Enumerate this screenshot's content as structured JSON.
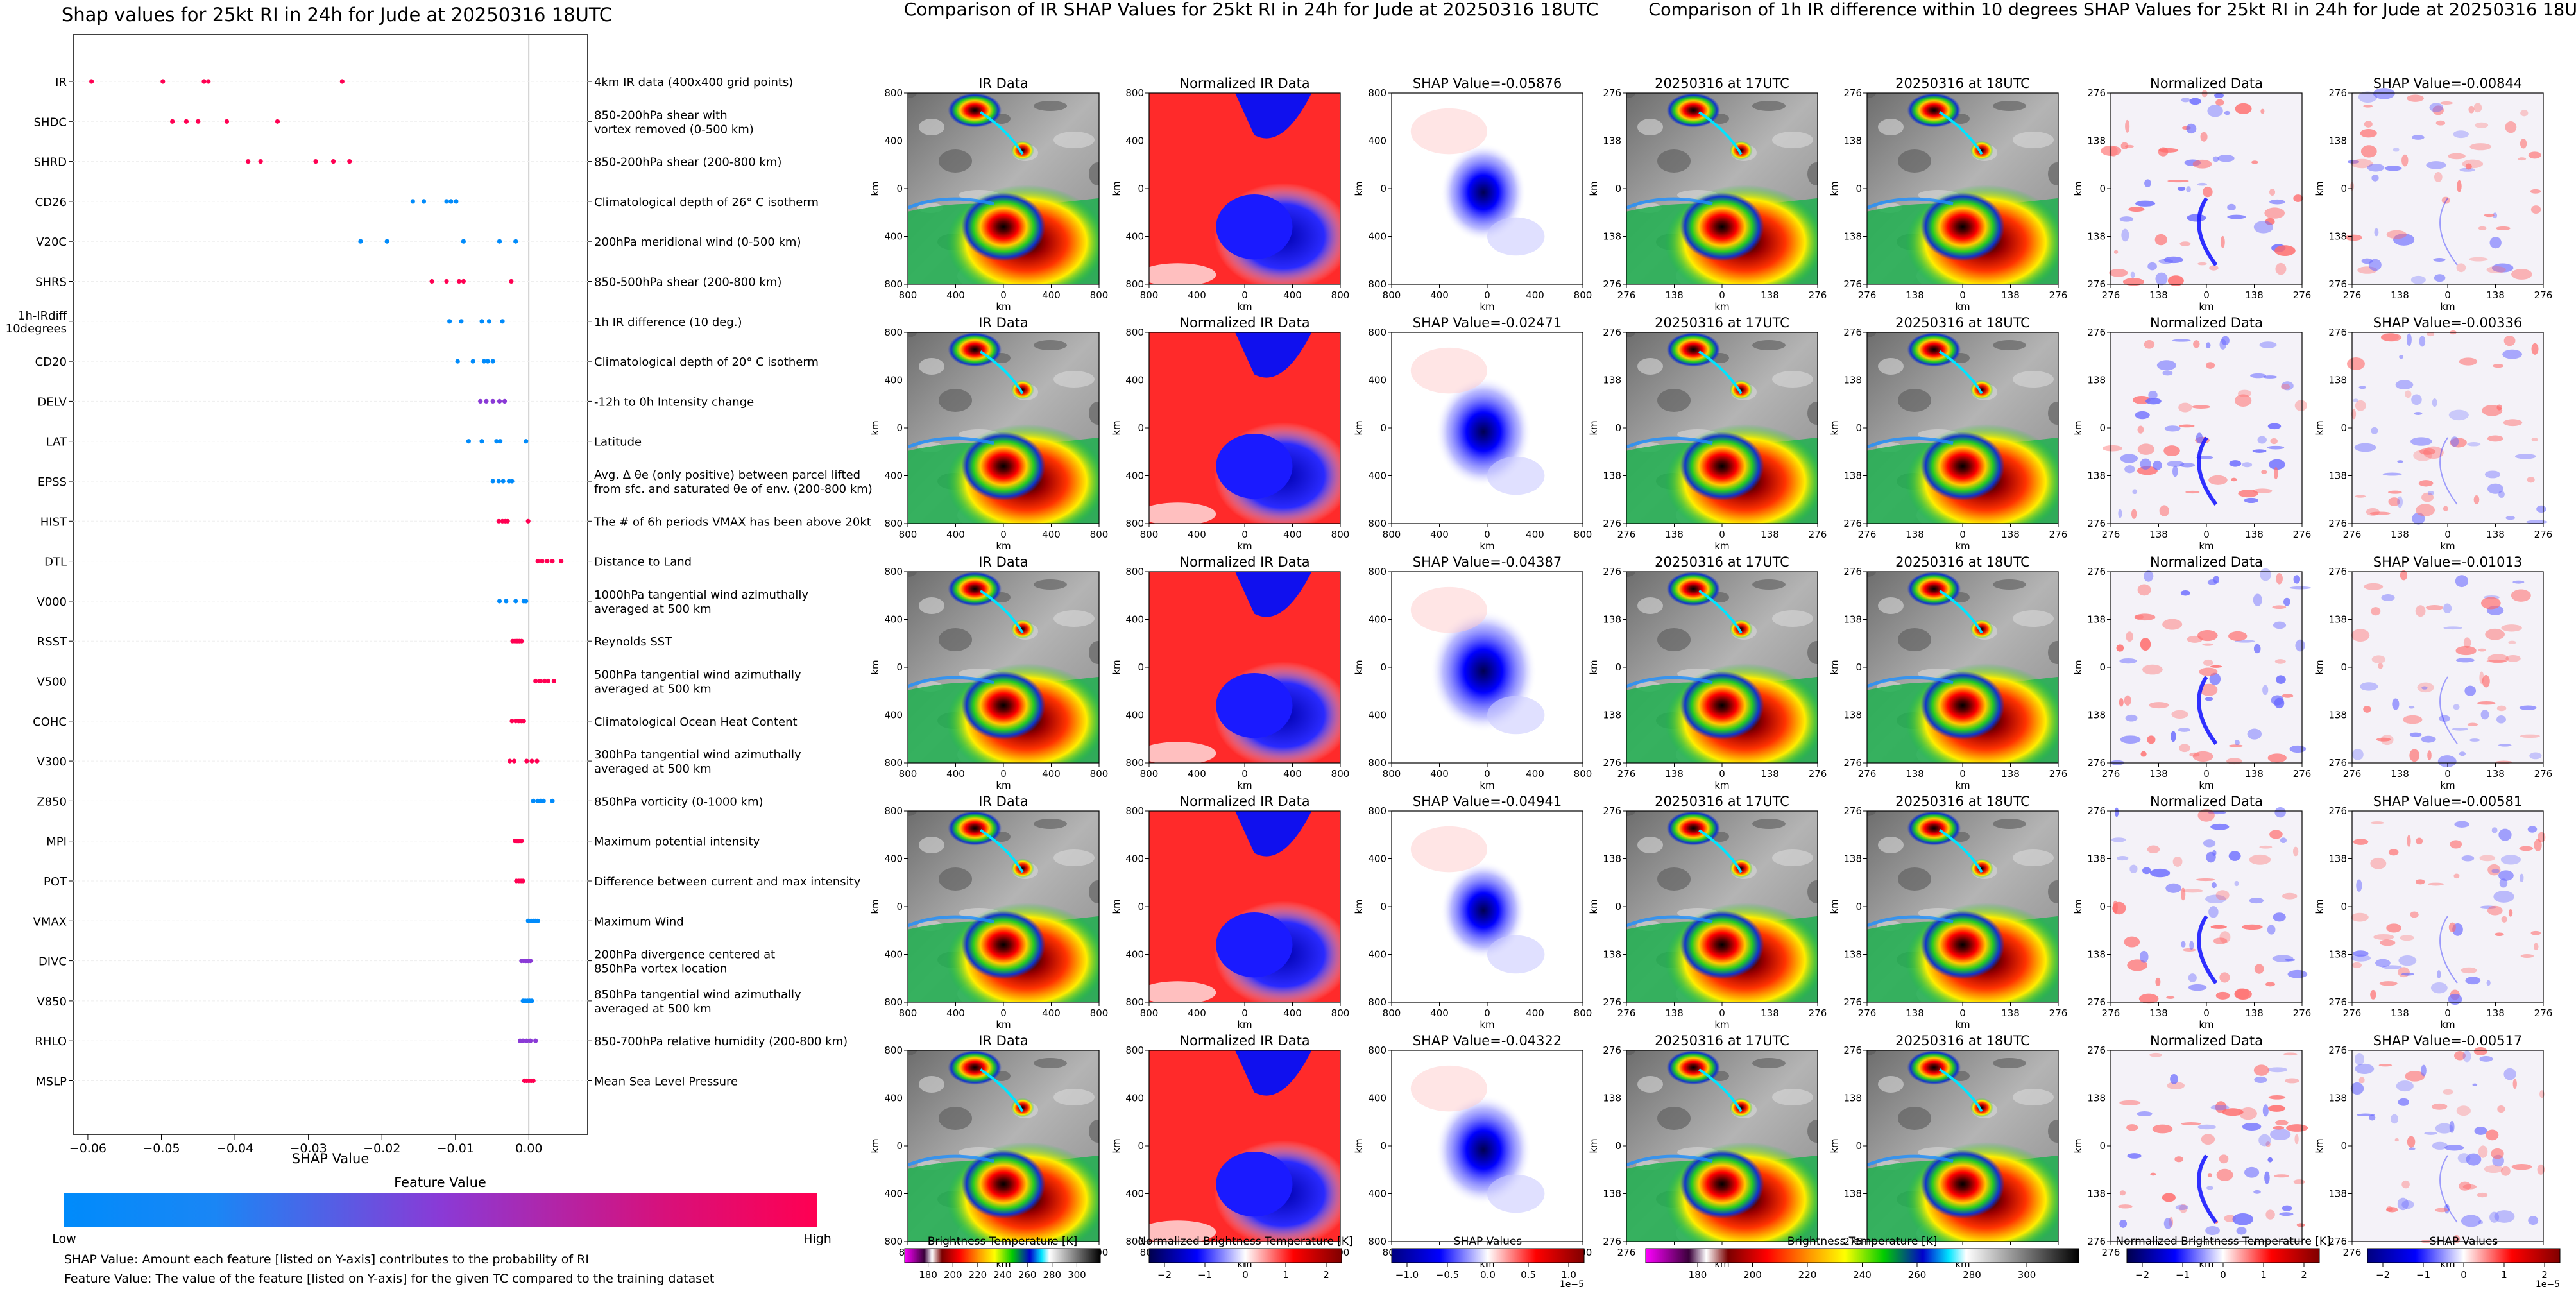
{
  "chart_data": [
    {
      "type": "scatter",
      "title": "Shap values for 25kt RI in 24h for Jude at 20250316 18UTC",
      "xlabel": "SHAP Value",
      "xlim": [
        -0.062,
        0.008
      ],
      "xticks": [
        "−0.06",
        "−0.05",
        "−0.04",
        "−0.03",
        "−0.02",
        "−0.01",
        "0.00"
      ],
      "xtick_values": [
        -0.06,
        -0.05,
        -0.04,
        -0.03,
        -0.02,
        -0.01,
        0.0
      ],
      "grid": true,
      "colorbar": {
        "title": "Feature Value",
        "low": "Low",
        "high": "High",
        "colors": [
          "#008bfb",
          "#8a3ad6",
          "#ff0052"
        ]
      },
      "features": [
        {
          "name": "IR",
          "desc": [
            "4km IR data (400x400 grid points)"
          ],
          "points": [
            [
              -0.0595,
              1
            ],
            [
              -0.0498,
              1
            ],
            [
              -0.0442,
              1
            ],
            [
              -0.0436,
              1
            ],
            [
              -0.0254,
              1
            ]
          ]
        },
        {
          "name": "SHDC",
          "desc": [
            "850-200hPa shear with",
            "vortex removed (0-500 km)"
          ],
          "points": [
            [
              -0.0485,
              1
            ],
            [
              -0.0466,
              1
            ],
            [
              -0.045,
              1
            ],
            [
              -0.0411,
              1
            ],
            [
              -0.0342,
              1
            ]
          ]
        },
        {
          "name": "SHRD",
          "desc": [
            "850-200hPa shear (200-800 km)"
          ],
          "points": [
            [
              -0.0382,
              1
            ],
            [
              -0.0365,
              1
            ],
            [
              -0.029,
              1
            ],
            [
              -0.0266,
              1
            ],
            [
              -0.0244,
              1
            ]
          ]
        },
        {
          "name": "CD26",
          "desc": [
            "Climatological depth of 26° C isotherm"
          ],
          "points": [
            [
              -0.0158,
              0
            ],
            [
              -0.0143,
              0
            ],
            [
              -0.0112,
              0
            ],
            [
              -0.0106,
              0
            ],
            [
              -0.0099,
              0
            ]
          ]
        },
        {
          "name": "V20C",
          "desc": [
            "200hPa meridional wind (0-500 km)"
          ],
          "points": [
            [
              -0.0229,
              0
            ],
            [
              -0.0193,
              0
            ],
            [
              -0.0089,
              0
            ],
            [
              -0.004,
              0
            ],
            [
              -0.0018,
              0
            ]
          ]
        },
        {
          "name": "SHRS",
          "desc": [
            "850-500hPa shear (200-800 km)"
          ],
          "points": [
            [
              -0.0132,
              1
            ],
            [
              -0.0112,
              1
            ],
            [
              -0.0095,
              1
            ],
            [
              -0.0089,
              1
            ],
            [
              -0.0024,
              1
            ]
          ]
        },
        {
          "name": "1h-IRdiff\n10degrees",
          "label_lines": [
            "1h-IRdiff",
            "10degrees"
          ],
          "desc": [
            "1h IR difference (10 deg.)"
          ],
          "points": [
            [
              -0.0108,
              0
            ],
            [
              -0.0092,
              0
            ],
            [
              -0.0064,
              0
            ],
            [
              -0.0054,
              0
            ],
            [
              -0.0036,
              0
            ]
          ]
        },
        {
          "name": "CD20",
          "desc": [
            "Climatological depth of 20° C isotherm"
          ],
          "points": [
            [
              -0.0097,
              0
            ],
            [
              -0.0076,
              0
            ],
            [
              -0.0061,
              0
            ],
            [
              -0.0056,
              0
            ],
            [
              -0.0049,
              0
            ]
          ]
        },
        {
          "name": "DELV",
          "desc": [
            "-12h to 0h Intensity change"
          ],
          "points": [
            [
              -0.0066,
              0.5
            ],
            [
              -0.0058,
              0.5
            ],
            [
              -0.0049,
              0.5
            ],
            [
              -0.004,
              0.5
            ],
            [
              -0.0033,
              0.5
            ]
          ]
        },
        {
          "name": "LAT",
          "desc": [
            "Latitude"
          ],
          "points": [
            [
              -0.0082,
              0
            ],
            [
              -0.0064,
              0
            ],
            [
              -0.0044,
              0
            ],
            [
              -0.0039,
              0
            ],
            [
              -0.0004,
              0
            ]
          ]
        },
        {
          "name": "EPSS",
          "desc": [
            "Avg. Δ θe (only positive) between parcel lifted",
            "from sfc. and saturated θe of env. (200-800 km)"
          ],
          "points": [
            [
              -0.0049,
              0
            ],
            [
              -0.0041,
              0
            ],
            [
              -0.0035,
              0
            ],
            [
              -0.0027,
              0
            ],
            [
              -0.0023,
              0
            ]
          ]
        },
        {
          "name": "HIST",
          "desc": [
            "The # of 6h periods VMAX has been above 20kt"
          ],
          "points": [
            [
              -0.0041,
              1
            ],
            [
              -0.0036,
              1
            ],
            [
              -0.0032,
              1
            ],
            [
              -0.0029,
              1
            ],
            [
              -0.0001,
              1
            ]
          ]
        },
        {
          "name": "DTL",
          "desc": [
            "Distance to Land"
          ],
          "points": [
            [
              0.0012,
              1
            ],
            [
              0.0018,
              1
            ],
            [
              0.0025,
              1
            ],
            [
              0.0032,
              1
            ],
            [
              0.0044,
              1
            ]
          ]
        },
        {
          "name": "V000",
          "desc": [
            "1000hPa tangential wind azimuthally",
            "averaged at 500 km"
          ],
          "points": [
            [
              -0.004,
              0
            ],
            [
              -0.0031,
              0
            ],
            [
              -0.0018,
              0
            ],
            [
              -0.0007,
              0
            ],
            [
              -0.0004,
              0
            ]
          ]
        },
        {
          "name": "RSST",
          "desc": [
            "Reynolds SST"
          ],
          "points": [
            [
              -0.0022,
              1
            ],
            [
              -0.0019,
              1
            ],
            [
              -0.0016,
              1
            ],
            [
              -0.0013,
              1
            ],
            [
              -0.001,
              1
            ]
          ]
        },
        {
          "name": "V500",
          "desc": [
            "500hPa tangential wind azimuthally",
            "averaged at 500 km"
          ],
          "points": [
            [
              0.0009,
              1
            ],
            [
              0.0015,
              1
            ],
            [
              0.0021,
              1
            ],
            [
              0.0026,
              1
            ],
            [
              0.0034,
              1
            ]
          ]
        },
        {
          "name": "COHC",
          "desc": [
            "Climatological Ocean Heat Content"
          ],
          "points": [
            [
              -0.0023,
              1
            ],
            [
              -0.0018,
              1
            ],
            [
              -0.0014,
              1
            ],
            [
              -0.001,
              1
            ],
            [
              -0.0007,
              1
            ]
          ]
        },
        {
          "name": "V300",
          "desc": [
            "300hPa tangential wind azimuthally",
            "averaged at 500 km"
          ],
          "points": [
            [
              -0.0026,
              1
            ],
            [
              -0.002,
              1
            ],
            [
              -0.0003,
              1
            ],
            [
              0.0004,
              1
            ],
            [
              0.0011,
              1
            ]
          ]
        },
        {
          "name": "Z850",
          "desc": [
            "850hPa vorticity (0-1000 km)"
          ],
          "points": [
            [
              0.0006,
              0
            ],
            [
              0.0012,
              0
            ],
            [
              0.0016,
              0
            ],
            [
              0.002,
              0
            ],
            [
              0.0032,
              0
            ]
          ]
        },
        {
          "name": "MPI",
          "desc": [
            "Maximum potential intensity"
          ],
          "points": [
            [
              -0.0019,
              1
            ],
            [
              -0.0016,
              1
            ],
            [
              -0.0014,
              1
            ],
            [
              -0.0012,
              1
            ],
            [
              -0.001,
              1
            ]
          ]
        },
        {
          "name": "POT",
          "desc": [
            "Difference between current and max intensity"
          ],
          "points": [
            [
              -0.0017,
              1
            ],
            [
              -0.0014,
              1
            ],
            [
              -0.0012,
              1
            ],
            [
              -0.001,
              1
            ],
            [
              -0.0008,
              1
            ]
          ]
        },
        {
          "name": "VMAX",
          "desc": [
            "Maximum Wind"
          ],
          "points": [
            [
              -0.0001,
              0
            ],
            [
              0.0003,
              0
            ],
            [
              0.0006,
              0
            ],
            [
              0.0009,
              0
            ],
            [
              0.0012,
              0
            ]
          ]
        },
        {
          "name": "DIVC",
          "desc": [
            "200hPa divergence centered at",
            "850hPa vortex location"
          ],
          "points": [
            [
              -0.001,
              0.5
            ],
            [
              -0.0007,
              0.5
            ],
            [
              -0.0004,
              0.5
            ],
            [
              -0.0001,
              0.5
            ],
            [
              0.0002,
              0.5
            ]
          ]
        },
        {
          "name": "V850",
          "desc": [
            "850hPa tangential wind azimuthally",
            "averaged at 500 km"
          ],
          "points": [
            [
              -0.0008,
              0
            ],
            [
              -0.0005,
              0
            ],
            [
              -0.0002,
              0
            ],
            [
              0.0001,
              0
            ],
            [
              0.0004,
              0
            ]
          ]
        },
        {
          "name": "RHLO",
          "desc": [
            "850-700hPa relative humidity (200-800 km)"
          ],
          "points": [
            [
              -0.0012,
              0.5
            ],
            [
              -0.0008,
              0.5
            ],
            [
              -0.0003,
              0.5
            ],
            [
              0.0002,
              0.5
            ],
            [
              0.0009,
              0.5
            ]
          ]
        },
        {
          "name": "MSLP",
          "desc": [
            "Mean Sea Level Pressure"
          ],
          "points": [
            [
              -0.0006,
              1
            ],
            [
              -0.0003,
              1
            ],
            [
              0.0,
              1
            ],
            [
              0.0003,
              1
            ],
            [
              0.0006,
              1
            ]
          ]
        }
      ]
    },
    {
      "type": "heatmap",
      "title": "Comparison of IR SHAP Values for 25kt RI in 24h for Jude at 20250316 18UTC",
      "column_titles": [
        "IR Data",
        "Normalized IR Data",
        "SHAP Value"
      ],
      "shap_values": [
        "-0.05876",
        "-0.02471",
        "-0.04387",
        "-0.04941",
        "-0.04322"
      ],
      "x_ticks": [
        "800",
        "400",
        "0",
        "400",
        "800"
      ],
      "y_ticks": [
        "800",
        "400",
        "0",
        "400",
        "800"
      ],
      "axis_label": "km",
      "colorbars": [
        {
          "label": "Brightness Temperature [K]",
          "ticks": [
            "180",
            "200",
            "220",
            "240",
            "260",
            "280",
            "300"
          ]
        },
        {
          "label": "Normalized Brightness Temperature [K]",
          "ticks": [
            "−2",
            "−1",
            "0",
            "1",
            "2"
          ]
        },
        {
          "label": "SHAP Values",
          "ticks": [
            "−1.0",
            "−0.5",
            "0.0",
            "0.5",
            "1.0"
          ],
          "offset": "1e−5"
        }
      ]
    },
    {
      "type": "heatmap",
      "title": "Comparison of 1h IR difference within 10 degrees SHAP Values for 25kt RI in 24h for Jude at 20250316 18UTC",
      "column_titles": [
        "20250316 at 17UTC",
        "20250316 at 18UTC",
        "Normalized Data",
        "SHAP Value"
      ],
      "shap_values": [
        "-0.00844",
        "-0.00336",
        "-0.01013",
        "-0.00581",
        "-0.00517"
      ],
      "x_ticks": [
        "276",
        "138",
        "0",
        "138",
        "276"
      ],
      "y_ticks": [
        "276",
        "138",
        "0",
        "138",
        "276"
      ],
      "axis_label": "km",
      "colorbars": [
        {
          "label": "Brightness Temperature [K]",
          "ticks": [
            "180",
            "200",
            "220",
            "240",
            "260",
            "280",
            "300"
          ]
        },
        {
          "label": "Normalized Brightness Temperature [K]",
          "ticks": [
            "−2",
            "−1",
            "0",
            "1",
            "2"
          ]
        },
        {
          "label": "SHAP Values",
          "ticks": [
            "−2",
            "−1",
            "0",
            "1",
            "2"
          ],
          "offset": "1e−5"
        }
      ]
    }
  ],
  "footnotes": [
    "SHAP Value: Amount each feature [listed on Y-axis] contributes to the probability of RI",
    "Feature Value: The value of the feature [listed on Y-axis] for the given TC compared to the training dataset"
  ]
}
